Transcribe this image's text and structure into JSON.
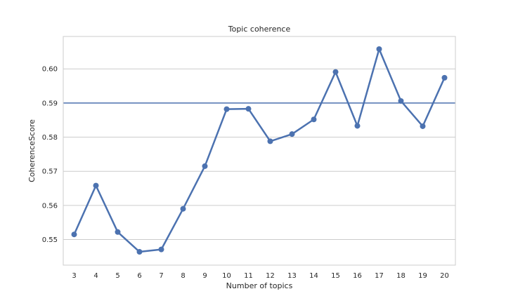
{
  "chart_data": {
    "type": "line",
    "title": "Topic coherence",
    "xlabel": "Number of topics",
    "ylabel": "CoherenceScore",
    "categories": [
      "3",
      "4",
      "5",
      "6",
      "7",
      "8",
      "9",
      "10",
      "11",
      "12",
      "13",
      "14",
      "15",
      "16",
      "17",
      "18",
      "19",
      "20"
    ],
    "series": [
      {
        "values": [
          0.5515,
          0.5658,
          0.5522,
          0.5464,
          0.5471,
          0.559,
          0.5715,
          0.5882,
          0.5883,
          0.5788,
          0.5809,
          0.5852,
          0.5991,
          0.5833,
          0.6058,
          0.5906,
          0.5832,
          0.5974
        ],
        "color": "#4c72b0"
      }
    ],
    "reference_line": {
      "y": 0.59,
      "color": "#4c72b0"
    },
    "yticks": [
      "0.55",
      "0.56",
      "0.57",
      "0.58",
      "0.59",
      "0.60"
    ],
    "ylim": [
      0.5425,
      0.6095
    ],
    "grid": true,
    "legend": "none"
  }
}
